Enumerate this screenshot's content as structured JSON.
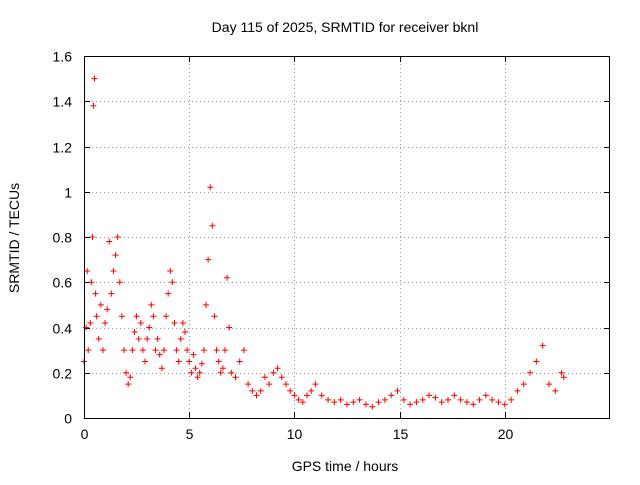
{
  "chart_data": {
    "type": "scatter",
    "title": "Day 115 of 2025, SRMTID for receiver bknl",
    "xlabel": "GPS time / hours",
    "ylabel": "SRMTID / TECUs",
    "xlim": [
      0,
      25
    ],
    "ylim": [
      0,
      1.6
    ],
    "xticks": [
      0,
      5,
      10,
      15,
      20
    ],
    "xtick_labels": [
      "0",
      "5",
      "10",
      "15",
      "20"
    ],
    "yticks": [
      0,
      0.2,
      0.4,
      0.6,
      0.8,
      1.0,
      1.2,
      1.4,
      1.6
    ],
    "ytick_labels": [
      "0",
      "0.2",
      "0.4",
      "0.6",
      "0.8",
      "1",
      "1.2",
      "1.4",
      "1.6"
    ],
    "grid": true,
    "marker": "+",
    "color": "#ff0000",
    "series": [
      {
        "name": "bknl",
        "x": [
          0.0,
          0.1,
          0.15,
          0.2,
          0.3,
          0.35,
          0.4,
          0.45,
          0.5,
          0.55,
          0.6,
          0.7,
          0.8,
          0.9,
          1.0,
          1.1,
          1.2,
          1.3,
          1.4,
          1.5,
          1.6,
          1.7,
          1.8,
          1.9,
          2.0,
          2.1,
          2.2,
          2.3,
          2.4,
          2.5,
          2.6,
          2.7,
          2.8,
          2.9,
          3.0,
          3.1,
          3.2,
          3.3,
          3.4,
          3.5,
          3.6,
          3.7,
          3.8,
          3.9,
          4.0,
          4.1,
          4.2,
          4.3,
          4.4,
          4.5,
          4.6,
          4.7,
          4.8,
          4.9,
          5.0,
          5.1,
          5.2,
          5.3,
          5.4,
          5.5,
          5.6,
          5.7,
          5.8,
          5.9,
          6.0,
          6.1,
          6.2,
          6.3,
          6.4,
          6.5,
          6.6,
          6.7,
          6.8,
          6.9,
          7.0,
          7.2,
          7.4,
          7.6,
          7.8,
          8.0,
          8.2,
          8.4,
          8.6,
          8.8,
          9.0,
          9.2,
          9.4,
          9.6,
          9.8,
          10.0,
          10.2,
          10.4,
          10.6,
          10.8,
          11.0,
          11.3,
          11.6,
          11.9,
          12.2,
          12.5,
          12.8,
          13.1,
          13.4,
          13.7,
          14.0,
          14.3,
          14.6,
          14.9,
          15.2,
          15.5,
          15.8,
          16.1,
          16.4,
          16.7,
          17.0,
          17.3,
          17.6,
          17.9,
          18.2,
          18.5,
          18.8,
          19.1,
          19.4,
          19.7,
          20.0,
          20.3,
          20.6,
          20.9,
          21.2,
          21.5,
          21.8,
          22.1,
          22.4,
          22.7,
          22.8
        ],
        "y": [
          0.25,
          0.4,
          0.65,
          0.3,
          0.42,
          0.6,
          0.8,
          1.38,
          1.5,
          0.55,
          0.45,
          0.35,
          0.5,
          0.3,
          0.42,
          0.48,
          0.78,
          0.55,
          0.65,
          0.72,
          0.8,
          0.6,
          0.45,
          0.3,
          0.2,
          0.15,
          0.18,
          0.3,
          0.38,
          0.45,
          0.35,
          0.42,
          0.3,
          0.25,
          0.35,
          0.4,
          0.5,
          0.45,
          0.3,
          0.35,
          0.28,
          0.22,
          0.3,
          0.45,
          0.55,
          0.65,
          0.6,
          0.42,
          0.3,
          0.25,
          0.35,
          0.42,
          0.38,
          0.3,
          0.25,
          0.2,
          0.28,
          0.22,
          0.18,
          0.2,
          0.24,
          0.3,
          0.5,
          0.7,
          1.02,
          0.85,
          0.45,
          0.3,
          0.25,
          0.2,
          0.22,
          0.3,
          0.62,
          0.4,
          0.2,
          0.18,
          0.25,
          0.3,
          0.15,
          0.12,
          0.1,
          0.12,
          0.18,
          0.15,
          0.2,
          0.22,
          0.18,
          0.15,
          0.12,
          0.1,
          0.08,
          0.07,
          0.1,
          0.12,
          0.15,
          0.1,
          0.08,
          0.07,
          0.08,
          0.06,
          0.07,
          0.08,
          0.06,
          0.05,
          0.07,
          0.08,
          0.1,
          0.12,
          0.08,
          0.06,
          0.07,
          0.08,
          0.1,
          0.09,
          0.07,
          0.08,
          0.1,
          0.08,
          0.07,
          0.06,
          0.08,
          0.1,
          0.08,
          0.07,
          0.06,
          0.08,
          0.12,
          0.15,
          0.2,
          0.25,
          0.32,
          0.15,
          0.12,
          0.2,
          0.18
        ]
      }
    ]
  }
}
